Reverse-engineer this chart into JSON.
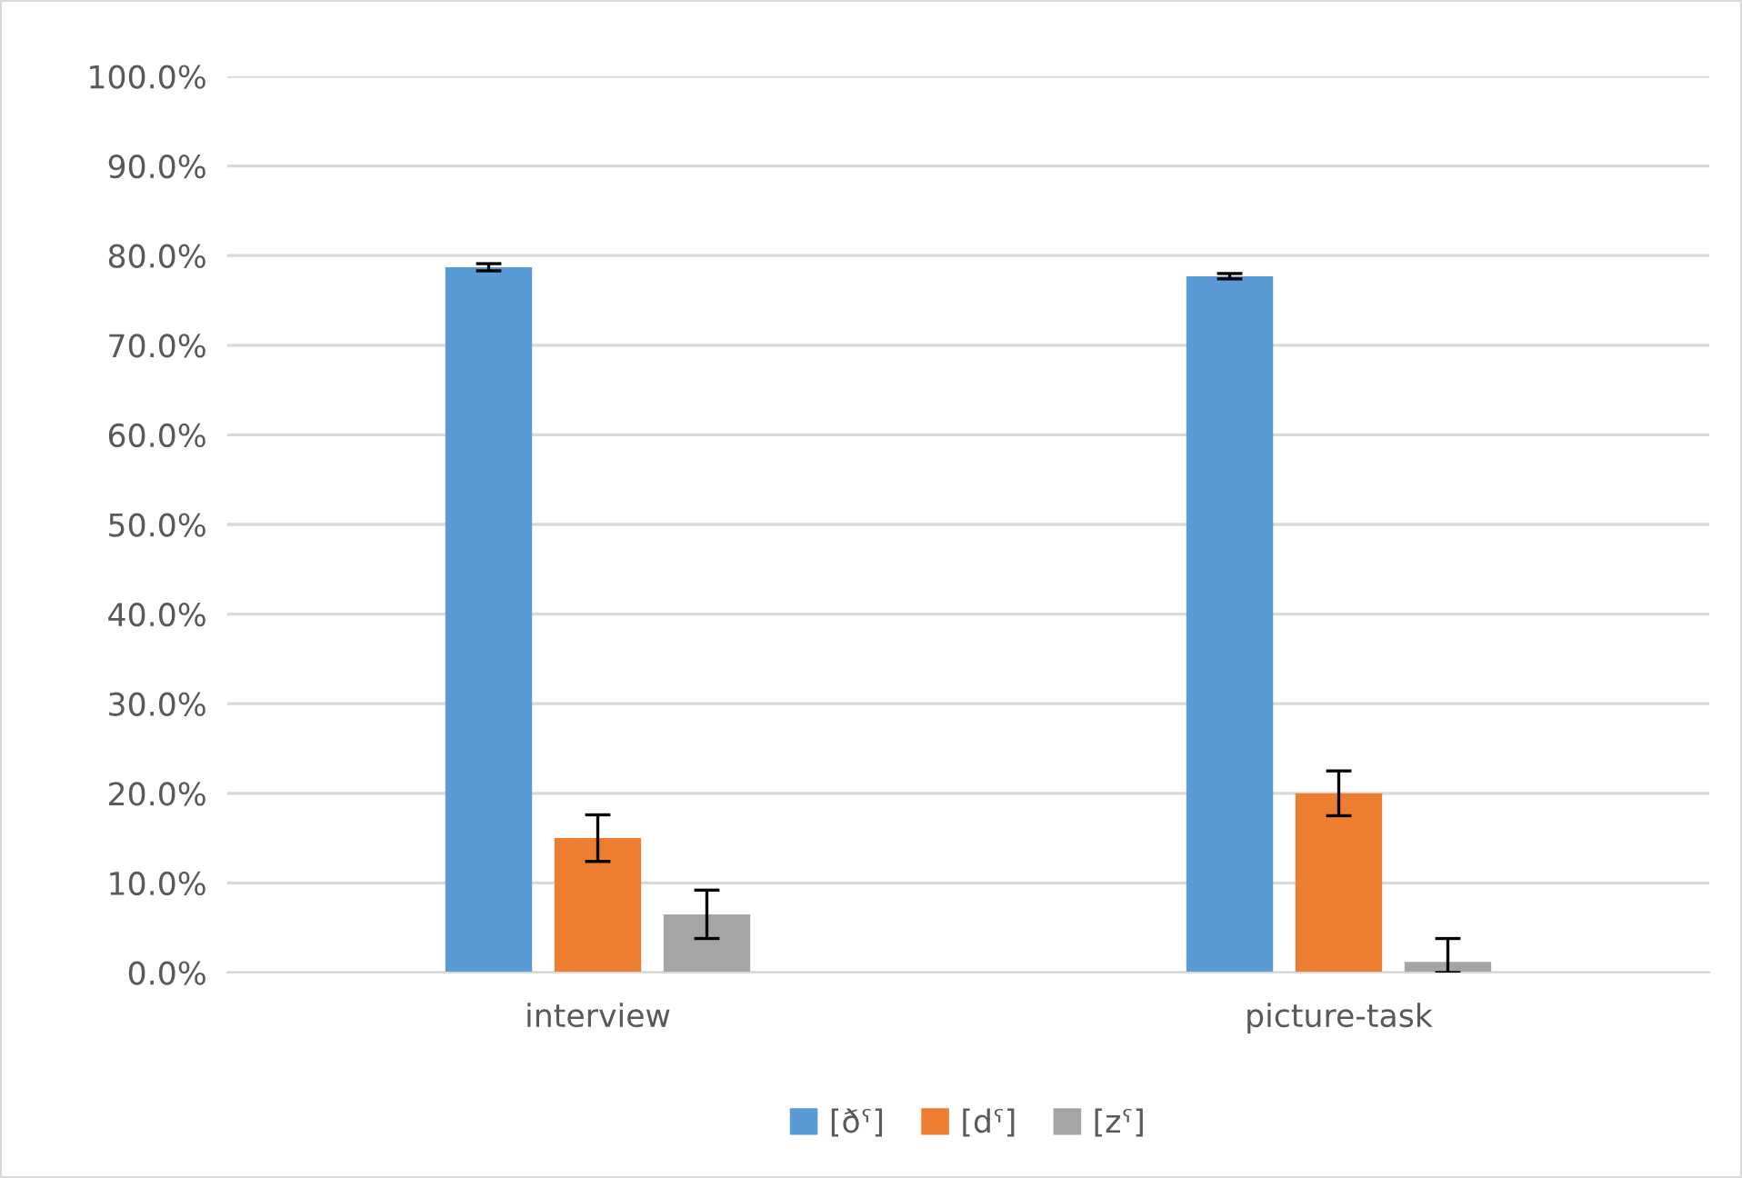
{
  "chart_data": {
    "type": "bar",
    "categories": [
      "interview",
      "picture-task"
    ],
    "series": [
      {
        "name": "[ðˤ]",
        "color": "#5b9bd5",
        "values": [
          78.7,
          77.7
        ],
        "errors": [
          0.4,
          0.3
        ]
      },
      {
        "name": "[dˤ]",
        "color": "#ed7d31",
        "values": [
          15.0,
          20.0
        ],
        "errors": [
          2.6,
          2.5
        ]
      },
      {
        "name": "[zˤ]",
        "color": "#a5a5a5",
        "values": [
          6.5,
          1.2
        ],
        "errors": [
          2.7,
          [
            0,
            3.8
          ]
        ]
      }
    ],
    "ylim": [
      0,
      100
    ],
    "yticks": [
      {
        "value": 0,
        "label": "0.0%"
      },
      {
        "value": 10,
        "label": "10.0%"
      },
      {
        "value": 20,
        "label": "20.0%"
      },
      {
        "value": 30,
        "label": "30.0%"
      },
      {
        "value": 40,
        "label": "40.0%"
      },
      {
        "value": 50,
        "label": "50.0%"
      },
      {
        "value": 60,
        "label": "60.0%"
      },
      {
        "value": 70,
        "label": "70.0%"
      },
      {
        "value": 80,
        "label": "80.0%"
      },
      {
        "value": 90,
        "label": "90.0%"
      },
      {
        "value": 100,
        "label": "100.0%"
      }
    ],
    "grid": "y",
    "legend": "bottom"
  }
}
